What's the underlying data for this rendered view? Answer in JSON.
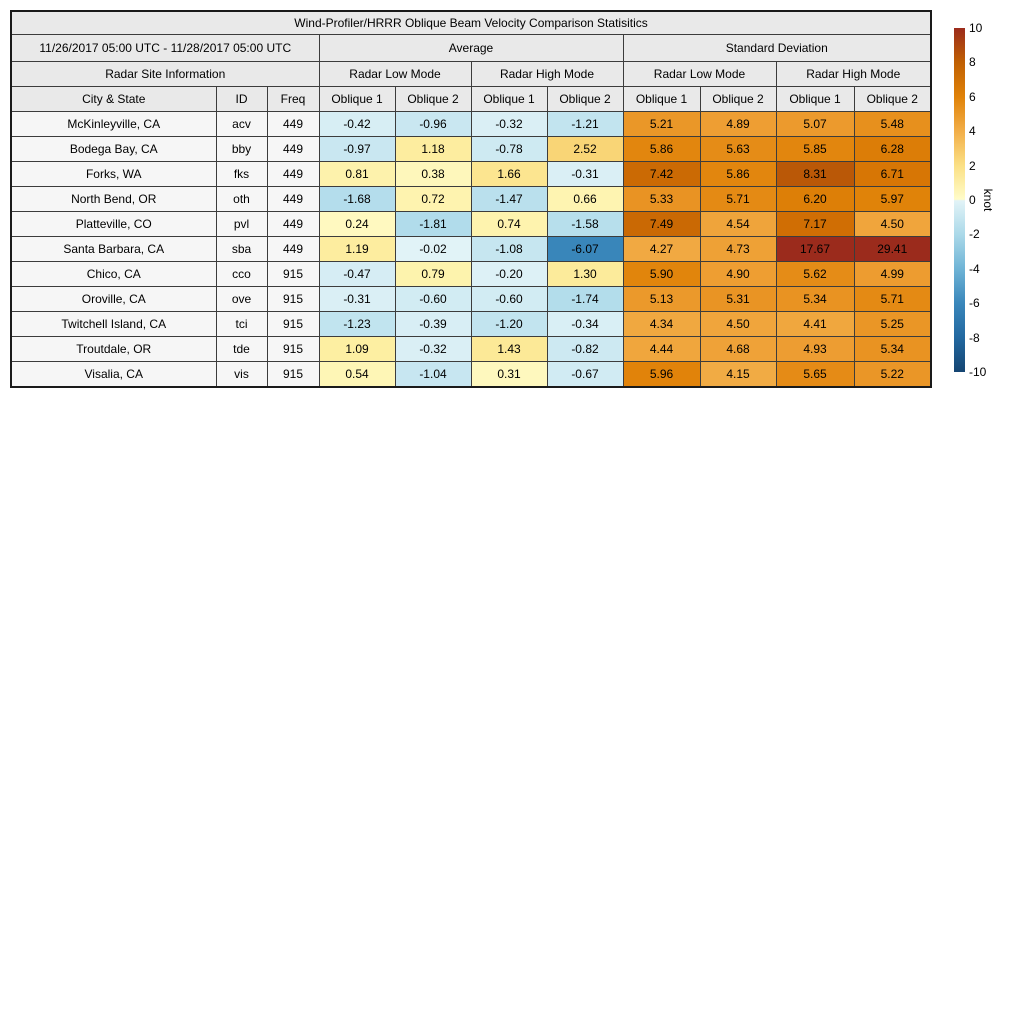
{
  "chart_data": {
    "type": "heatmap",
    "title": "Wind-Profiler/HRRR Oblique Beam Velocity Comparison Statisitics",
    "rows": [
      {
        "city": "McKinleyville, CA",
        "id": "acv",
        "freq": "449",
        "values": [
          "-0.42",
          "-0.96",
          "-0.32",
          "-1.21",
          "5.21",
          "4.89",
          "5.07",
          "5.48"
        ]
      },
      {
        "city": "Bodega Bay, CA",
        "id": "bby",
        "freq": "449",
        "values": [
          "-0.97",
          "1.18",
          "-0.78",
          "2.52",
          "5.86",
          "5.63",
          "5.85",
          "6.28"
        ]
      },
      {
        "city": "Forks, WA",
        "id": "fks",
        "freq": "449",
        "values": [
          "0.81",
          "0.38",
          "1.66",
          "-0.31",
          "7.42",
          "5.86",
          "8.31",
          "6.71"
        ]
      },
      {
        "city": "North Bend, OR",
        "id": "oth",
        "freq": "449",
        "values": [
          "-1.68",
          "0.72",
          "-1.47",
          "0.66",
          "5.33",
          "5.71",
          "6.20",
          "5.97"
        ]
      },
      {
        "city": "Platteville, CO",
        "id": "pvl",
        "freq": "449",
        "values": [
          "0.24",
          "-1.81",
          "0.74",
          "-1.58",
          "7.49",
          "4.54",
          "7.17",
          "4.50"
        ]
      },
      {
        "city": "Santa Barbara, CA",
        "id": "sba",
        "freq": "449",
        "values": [
          "1.19",
          "-0.02",
          "-1.08",
          "-6.07",
          "4.27",
          "4.73",
          "17.67",
          "29.41"
        ]
      },
      {
        "city": "Chico, CA",
        "id": "cco",
        "freq": "915",
        "values": [
          "-0.47",
          "0.79",
          "-0.20",
          "1.30",
          "5.90",
          "4.90",
          "5.62",
          "4.99"
        ]
      },
      {
        "city": "Oroville, CA",
        "id": "ove",
        "freq": "915",
        "values": [
          "-0.31",
          "-0.60",
          "-0.60",
          "-1.74",
          "5.13",
          "5.31",
          "5.34",
          "5.71"
        ]
      },
      {
        "city": "Twitchell Island, CA",
        "id": "tci",
        "freq": "915",
        "values": [
          "-1.23",
          "-0.39",
          "-1.20",
          "-0.34",
          "4.34",
          "4.50",
          "4.41",
          "5.25"
        ]
      },
      {
        "city": "Troutdale, OR",
        "id": "tde",
        "freq": "915",
        "values": [
          "1.09",
          "-0.32",
          "1.43",
          "-0.82",
          "4.44",
          "4.68",
          "4.93",
          "5.34"
        ]
      },
      {
        "city": "Visalia, CA",
        "id": "vis",
        "freq": "915",
        "values": [
          "0.54",
          "-1.04",
          "0.31",
          "-0.67",
          "5.96",
          "4.15",
          "5.65",
          "5.22"
        ]
      }
    ],
    "colorbar": {
      "label": "knot",
      "vmin": -10,
      "vmax": 10,
      "ticks": [
        10,
        8,
        6,
        4,
        2,
        0,
        -2,
        -4,
        -6,
        -8,
        -10
      ]
    }
  },
  "header": {
    "date_range": "11/26/2017 05:00 UTC - 11/28/2017 05:00 UTC",
    "group_average": "Average",
    "group_std": "Standard Deviation",
    "site_info": "Radar Site Information",
    "modes": [
      "Radar Low Mode",
      "Radar High Mode",
      "Radar Low Mode",
      "Radar High Mode"
    ],
    "columns": [
      "City & State",
      "ID",
      "Freq",
      "Oblique 1",
      "Oblique 2",
      "Oblique 1",
      "Oblique 2",
      "Oblique 1",
      "Oblique 2",
      "Oblique 1",
      "Oblique 2"
    ]
  },
  "colors": {
    "header_bg": "#e9e9e9",
    "site_bg": "#f6f6f6",
    "border": "#3c3c3c",
    "cmap_pos": [
      [
        0,
        "#fffcc9"
      ],
      [
        1,
        "#fdf0a5"
      ],
      [
        2,
        "#fbe085"
      ],
      [
        3,
        "#f8cb68"
      ],
      [
        4,
        "#f2ae48"
      ],
      [
        5,
        "#ed9c30"
      ],
      [
        6,
        "#e08208"
      ],
      [
        7,
        "#d37104"
      ],
      [
        8,
        "#c06003"
      ],
      [
        9,
        "#ad4510"
      ],
      [
        10,
        "#9b2b1c"
      ]
    ],
    "cmap_neg": [
      [
        -10,
        "#154572"
      ],
      [
        -8,
        "#2268a0"
      ],
      [
        -6,
        "#3a87bb"
      ],
      [
        -5,
        "#539dc8"
      ],
      [
        -4,
        "#6fb4d6"
      ],
      [
        -3,
        "#8ec8e0"
      ],
      [
        -2,
        "#abd9e9"
      ],
      [
        -1,
        "#c8e7f1"
      ],
      [
        0,
        "#e2f3f7"
      ]
    ],
    "colorbar_gradient": [
      {
        "p": 0,
        "c": "#9b2b1c"
      },
      {
        "p": 10,
        "c": "#c06003"
      },
      {
        "p": 20,
        "c": "#e08208"
      },
      {
        "p": 30,
        "c": "#f2ae48"
      },
      {
        "p": 40,
        "c": "#fbe085"
      },
      {
        "p": 49.8,
        "c": "#fffcc9"
      },
      {
        "p": 50.2,
        "c": "#e2f3f7"
      },
      {
        "p": 60,
        "c": "#abd9e9"
      },
      {
        "p": 70,
        "c": "#6fb4d6"
      },
      {
        "p": 80,
        "c": "#3a87bb"
      },
      {
        "p": 90,
        "c": "#2268a0"
      },
      {
        "p": 100,
        "c": "#154572"
      }
    ]
  }
}
